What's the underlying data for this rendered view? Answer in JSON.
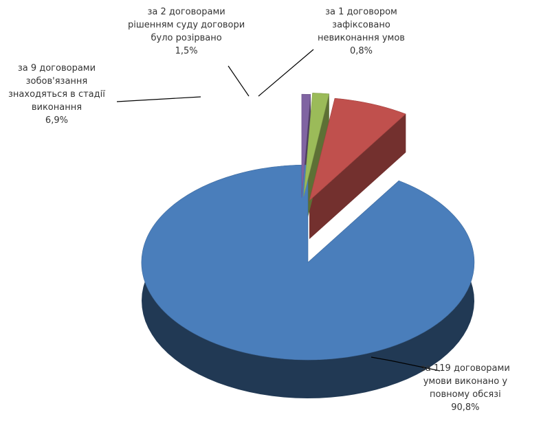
{
  "chart_data": {
    "type": "pie",
    "title": "",
    "legend": "none",
    "style": "3d-exploded",
    "slices": [
      {
        "value": 90.8,
        "color": "#4A7EBB",
        "label_lines": [
          "за 119 договорами",
          "умови виконано у",
          "повному обсязі"
        ],
        "pct": "90,8%"
      },
      {
        "value": 6.9,
        "color": "#C0504D",
        "label_lines": [
          "за 9 договорами",
          "зобов'язання",
          "знаходяться в стадії",
          "виконання"
        ],
        "pct": "6,9%"
      },
      {
        "value": 1.5,
        "color": "#9BBB59",
        "label_lines": [
          "за 2 договорами",
          "рішенням суду договори",
          "було розірвано"
        ],
        "pct": "1,5%"
      },
      {
        "value": 0.8,
        "color": "#8064A2",
        "label_lines": [
          "за 1 договором",
          "зафіксовано",
          "невиконання умов"
        ],
        "pct": "0,8%"
      }
    ]
  }
}
